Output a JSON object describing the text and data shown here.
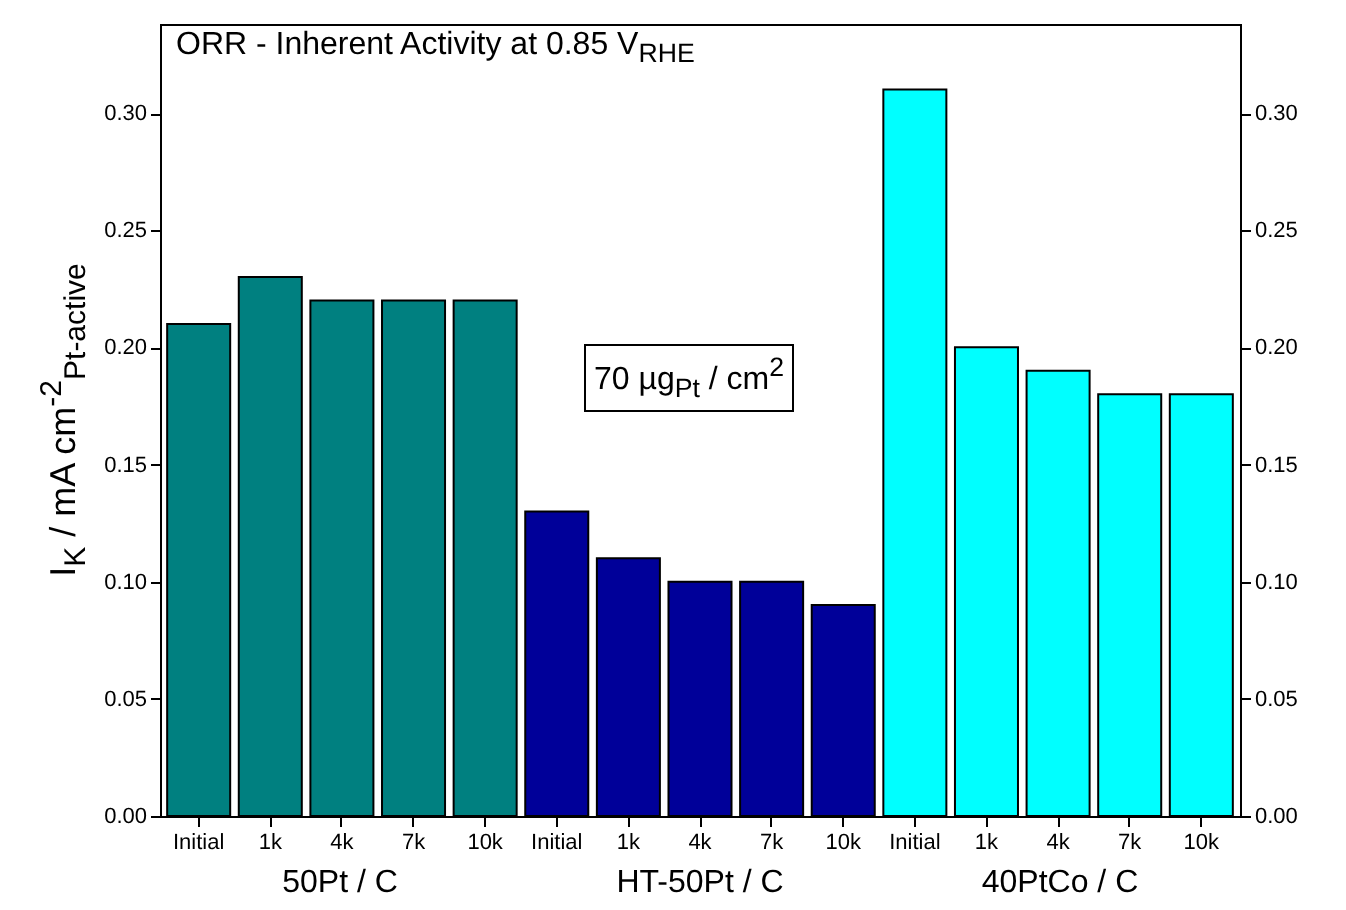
{
  "chart_data": {
    "type": "bar",
    "title": "ORR - Inherent Activity at 0.85 V$_{RHE}$",
    "ylabel": "I$_{K}$ / mA cm$^{-2}$$_{Pt-active}$",
    "categories": [
      "Initial",
      "1k",
      "4k",
      "7k",
      "10k",
      "Initial",
      "1k",
      "4k",
      "7k",
      "10k",
      "Initial",
      "1k",
      "4k",
      "7k",
      "10k"
    ],
    "values": [
      0.21,
      0.23,
      0.22,
      0.22,
      0.22,
      0.13,
      0.11,
      0.1,
      0.1,
      0.09,
      0.31,
      0.2,
      0.19,
      0.18,
      0.18
    ],
    "colors": [
      "#008080",
      "#008080",
      "#008080",
      "#008080",
      "#008080",
      "#000099",
      "#000099",
      "#000099",
      "#000099",
      "#000099",
      "#00ffff",
      "#00ffff",
      "#00ffff",
      "#00ffff",
      "#00ffff"
    ],
    "ylim": [
      0,
      0.338
    ],
    "yticks": [
      {
        "value": 0,
        "label": "0.00"
      },
      {
        "value": 0.05,
        "label": "0.05"
      },
      {
        "value": 0.1,
        "label": "0.10"
      },
      {
        "value": 0.15,
        "label": "0.15"
      },
      {
        "value": 0.2,
        "label": "0.20"
      },
      {
        "value": 0.25,
        "label": "0.25"
      },
      {
        "value": 0.3,
        "label": "0.30"
      }
    ],
    "y2lim": [
      0,
      0.338
    ],
    "y2ticks": [
      {
        "value": 0,
        "label": "0.00"
      },
      {
        "value": 0.05,
        "label": "0.05"
      },
      {
        "value": 0.1,
        "label": "0.10"
      },
      {
        "value": 0.15,
        "label": "0.15"
      },
      {
        "value": 0.2,
        "label": "0.20"
      },
      {
        "value": 0.25,
        "label": "0.25"
      },
      {
        "value": 0.3,
        "label": "0.30"
      }
    ],
    "grid": false,
    "annotations": [
      "70 µg$_{Pt}$ / cm$^{2}$",
      "50Pt / C",
      "HT-50Pt / C",
      "40PtCo / C"
    ]
  }
}
